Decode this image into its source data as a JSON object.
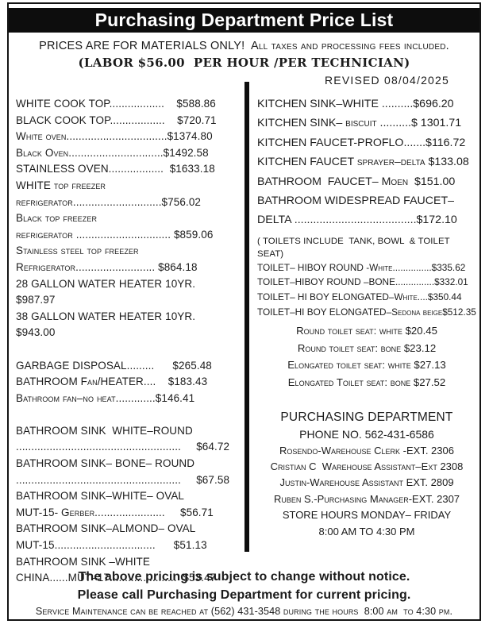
{
  "header": {
    "title": "Purchasing Department Price List",
    "notice": "PRICES ARE FOR MATERIALS ONLY!  All taxes and processing fees included.",
    "labor": "(LABOR $56.00  PER HOUR /PER TECHNICIAN)",
    "revised": "REVISED 08/04/2025"
  },
  "left_column": {
    "lines": [
      "WHITE COOK TOP..................    $588.86",
      "BLACK COOK TOP..................    $720.71",
      "White oven.................................$1374.80",
      "Black Oven...............................$1492.58",
      "STAINLESS OVEN..................  $1633.18",
      "WHITE top freezer",
      "refrigerator.............................$756.02",
      "Black top freezer",
      "refrigerator ............................... $859.06",
      "Stainless steel top freezer",
      "Refrigerator.......................... $864.18",
      "28 GALLON WATER HEATER 10YR.",
      "$987.97",
      "38 GALLON WATER HEATER 10YR.",
      "$943.00",
      "",
      "GARBAGE DISPOSAL.........      $265.48",
      "BATHROOM Fan/HEATER....    $183.43",
      "Bathroom fan–no heat.............$146.41",
      "",
      "BATHROOM SINK  WHITE–ROUND",
      "......................................................     $64.72",
      "BATHROOM SINK– BONE– ROUND",
      "......................................................     $67.58",
      "BATHROOM SINK–WHITE– OVAL",
      "MUT-15- Gerber.......................     $56.71",
      "BATHROOM SINK–ALMOND– OVAL",
      "MUT-15.................................      $51.13",
      "BATHROOM SINK –WHITE",
      "CHINA......MUT–17......................  $53.47"
    ]
  },
  "right_column": {
    "fixtures": [
      "KITCHEN SINK–WHITE ..........$696.20",
      "KITCHEN SINK– biscuit ..........$ 1301.71",
      "KITCHEN FAUCET-PROFLO.......$116.72",
      "KITCHEN FAUCET sprayer–delta $133.08",
      "BATHROOM  FAUCET– Moen  $151.00",
      "BATHROOM WIDESPREAD FAUCET–",
      "DELTA .......................................$172.10"
    ],
    "toilets_note": "( TOILETS INCLUDE  TANK, BOWL  & TOILET SEAT)",
    "toilets": [
      "TOILET– HIBOY ROUND -White...............$335.62",
      "TOILET–HIBOY ROUND –BONE...............$332.01",
      "TOILET– HI BOY ELONGATED–White....$350.44",
      "TOILET–HI BOY ELONGATED–Sedona beige$512.35"
    ],
    "seats": [
      "Round toilet seat: white $20.45",
      "Round toilet seat: bone $23.12",
      "Elongated toilet seat: white $27.13",
      "Elongated Toilet seat: bone $27.52"
    ],
    "department": {
      "title": "PURCHASING DEPARTMENT",
      "lines": [
        "PHONE NO. 562-431-6586",
        "Rosendo-Warehouse Clerk -EXT. 2306",
        "Cristian C  Warehouse Assistant–Ext 2308",
        "Justin-Warehouse Assistant EXT. 2809",
        "Ruben S.-Purchasing Manager-EXT. 2307",
        "STORE HOURS MONDAY– FRIDAY",
        "8:00 AM TO 4:30 PM"
      ]
    }
  },
  "footer": {
    "bold_line_1": "The above pricing is subject to change without notice.",
    "bold_line_2": "Please call Purchasing Department for current pricing.",
    "service_line": "Service Maintenance can be reached at (562) 431-3548 during the hours  8:00 am  to 4:30 pm."
  }
}
